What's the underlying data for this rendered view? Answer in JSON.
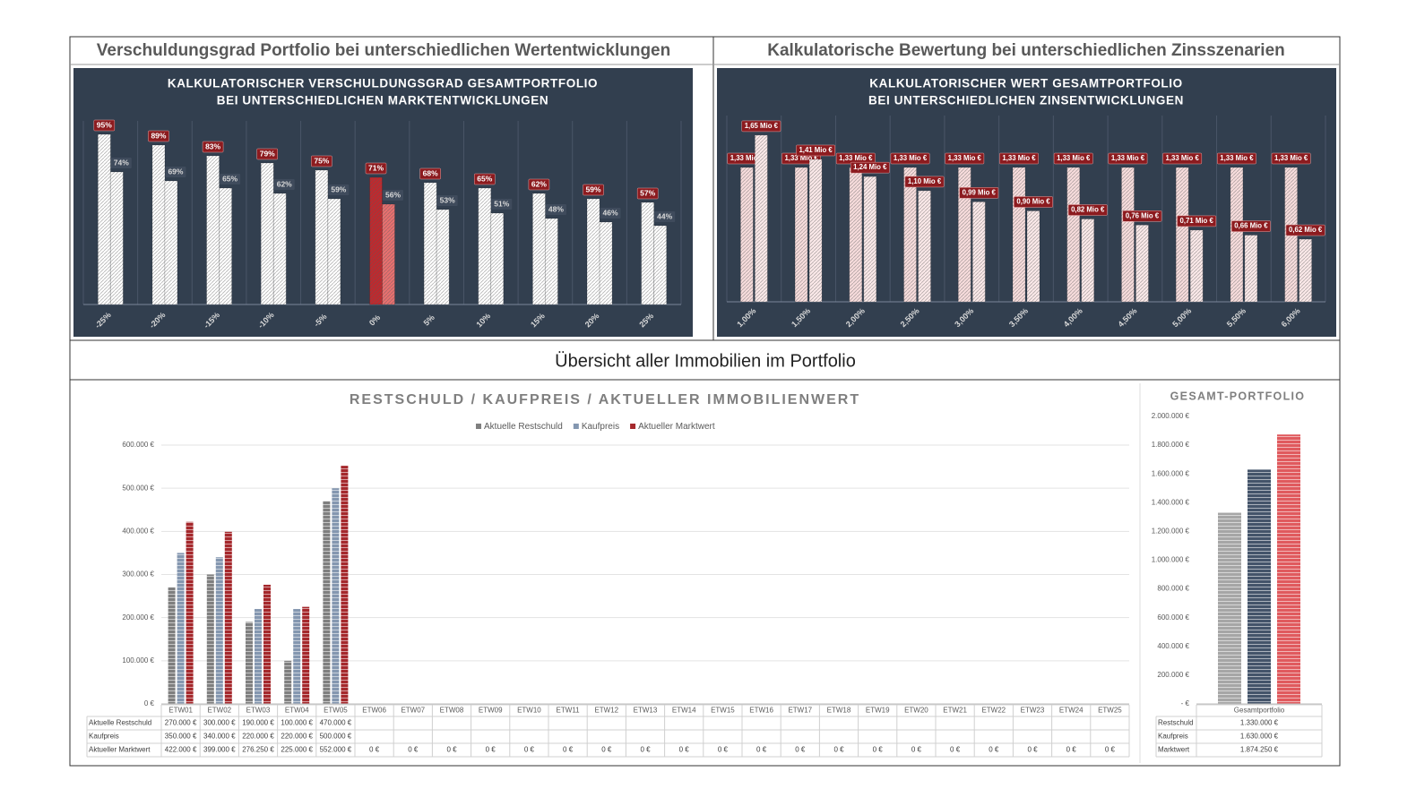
{
  "headers": {
    "left": "Verschuldungsgrad Portfolio bei unterschiedlichen Wertentwicklungen",
    "right": "Kalkulatorische Bewertung bei unterschiedlichen Zinsszenarien",
    "middle": "Übersicht aller Immobilien im Portfolio"
  },
  "chart_data": [
    {
      "type": "bar",
      "title": [
        "KALKULATORISCHER VERSCHULDUNGSGRAD GESAMTPORTFOLIO",
        "BEI UNTERSCHIEDLICHEN MARKTENTWICKLUNGEN"
      ],
      "categories": [
        "-25%",
        "-20%",
        "-15%",
        "-10%",
        "-5%",
        "0%",
        "5%",
        "10%",
        "15%",
        "20%",
        "25%"
      ],
      "ylim": [
        0,
        100
      ],
      "series": [
        {
          "color": "#ffffff",
          "colors": [
            "#ffffff",
            "#ffffff",
            "#ffffff",
            "#ffffff",
            "#ffffff",
            "#c0282d",
            "#ffffff",
            "#ffffff",
            "#ffffff",
            "#ffffff",
            "#ffffff"
          ],
          "values": [
            95,
            89,
            83,
            79,
            75,
            71,
            68,
            65,
            62,
            59,
            57
          ],
          "value_labels": [
            "95%",
            "89%",
            "83%",
            "79%",
            "75%",
            "71%",
            "68%",
            "65%",
            "62%",
            "59%",
            "57%"
          ]
        },
        {
          "color": "#ffffff",
          "colors": [
            "#ffffff",
            "#ffffff",
            "#ffffff",
            "#ffffff",
            "#ffffff",
            "#e8706f",
            "#ffffff",
            "#ffffff",
            "#ffffff",
            "#ffffff",
            "#ffffff"
          ],
          "values": [
            74,
            69,
            65,
            62,
            59,
            56,
            53,
            51,
            48,
            46,
            44
          ],
          "value_labels": [
            "74%",
            "69%",
            "65%",
            "62%",
            "59%",
            "56%",
            "53%",
            "51%",
            "48%",
            "46%",
            "44%"
          ]
        }
      ]
    },
    {
      "type": "bar",
      "title": [
        "KALKULATORISCHER WERT GESAMTPORTFOLIO",
        "BEI UNTERSCHIEDLICHEN ZINSENTWICKLUNGEN"
      ],
      "categories": [
        "1,00%",
        "1,50%",
        "2,00%",
        "2,50%",
        "3,00%",
        "3,50%",
        "4,00%",
        "4,50%",
        "5,00%",
        "5,50%",
        "6,00%"
      ],
      "ylim": [
        0,
        1.8
      ],
      "series": [
        {
          "color": "#f7dcdc",
          "values": [
            1.33,
            1.33,
            1.33,
            1.33,
            1.33,
            1.33,
            1.33,
            1.33,
            1.33,
            1.33,
            1.33
          ],
          "value_labels": [
            "1,33 Mio €",
            "1,33 Mio €",
            "1,33 Mio €",
            "1,33 Mio €",
            "1,33 Mio €",
            "1,33 Mio €",
            "1,33 Mio €",
            "1,33 Mio €",
            "1,33 Mio €",
            "1,33 Mio €",
            "1,33 Mio €"
          ]
        },
        {
          "color": "#fbe9e9",
          "values": [
            1.65,
            1.41,
            1.24,
            1.1,
            0.99,
            0.9,
            0.82,
            0.76,
            0.71,
            0.66,
            0.62
          ],
          "value_labels": [
            "1,65 Mio €",
            "1,41 Mio €",
            "1,24 Mio €",
            "1,10 Mio €",
            "0,99 Mio €",
            "0,90 Mio €",
            "0,82 Mio €",
            "0,76 Mio €",
            "0,71 Mio €",
            "0,66 Mio €",
            "0,62 Mio €"
          ]
        }
      ]
    },
    {
      "type": "bar",
      "title": "RESTSCHULD / KAUFPREIS / AKTUELLER IMMOBILIENWERT",
      "legend": "top",
      "grid": true,
      "categories": [
        "ETW01",
        "ETW02",
        "ETW03",
        "ETW04",
        "ETW05",
        "ETW06",
        "ETW07",
        "ETW08",
        "ETW09",
        "ETW10",
        "ETW11",
        "ETW12",
        "ETW13",
        "ETW14",
        "ETW15",
        "ETW16",
        "ETW17",
        "ETW18",
        "ETW19",
        "ETW20",
        "ETW21",
        "ETW22",
        "ETW23",
        "ETW24",
        "ETW25"
      ],
      "ylim": [
        0,
        600000
      ],
      "yticks": [
        {
          "value": 0,
          "label": "0 €"
        },
        {
          "value": 100000,
          "label": "100.000 €"
        },
        {
          "value": 200000,
          "label": "200.000 €"
        },
        {
          "value": 300000,
          "label": "300.000 €"
        },
        {
          "value": 400000,
          "label": "400.000 €"
        },
        {
          "value": 500000,
          "label": "500.000 €"
        },
        {
          "value": 600000,
          "label": "600.000 €"
        }
      ],
      "series": [
        {
          "name": "Aktuelle Restschuld",
          "color": "#7f7f7f",
          "values": [
            270000,
            300000,
            190000,
            100000,
            470000,
            null,
            null,
            null,
            null,
            null,
            null,
            null,
            null,
            null,
            null,
            null,
            null,
            null,
            null,
            null,
            null,
            null,
            null,
            null,
            null
          ],
          "value_labels": [
            "270.000 €",
            "300.000 €",
            "190.000 €",
            "100.000 €",
            "470.000 €",
            null,
            null,
            null,
            null,
            null,
            null,
            null,
            null,
            null,
            null,
            null,
            null,
            null,
            null,
            null,
            null,
            null,
            null,
            null,
            null
          ]
        },
        {
          "name": "Kaufpreis",
          "color": "#8497b0",
          "values": [
            350000,
            340000,
            220000,
            220000,
            500000,
            null,
            null,
            null,
            null,
            null,
            null,
            null,
            null,
            null,
            null,
            null,
            null,
            null,
            null,
            null,
            null,
            null,
            null,
            null,
            null
          ],
          "value_labels": [
            "350.000 €",
            "340.000 €",
            "220.000 €",
            "220.000 €",
            "500.000 €",
            null,
            null,
            null,
            null,
            null,
            null,
            null,
            null,
            null,
            null,
            null,
            null,
            null,
            null,
            null,
            null,
            null,
            null,
            null,
            null
          ]
        },
        {
          "name": "Aktueller Marktwert",
          "color": "#a5282c",
          "values": [
            422000,
            399000,
            276250,
            225000,
            552000,
            0,
            0,
            0,
            0,
            0,
            0,
            0,
            0,
            0,
            0,
            0,
            0,
            0,
            0,
            0,
            0,
            0,
            0,
            0,
            0
          ],
          "value_labels": [
            "422.000 €",
            "399.000 €",
            "276.250 €",
            "225.000 €",
            "552.000 €",
            "0 €",
            "0 €",
            "0 €",
            "0 €",
            "0 €",
            "0 €",
            "0 €",
            "0 €",
            "0 €",
            "0 €",
            "0 €",
            "0 €",
            "0 €",
            "0 €",
            "0 €",
            "0 €",
            "0 €",
            "0 €",
            "0 €",
            "0 €"
          ]
        }
      ]
    },
    {
      "type": "bar",
      "title": "GESAMT-PORTFOLIO",
      "grid": false,
      "categories": [
        "Gesamtportfolio"
      ],
      "ylim": [
        0,
        2000000
      ],
      "yticks": [
        {
          "value": 0,
          "label": "- €"
        },
        {
          "value": 200000,
          "label": "200.000 €"
        },
        {
          "value": 400000,
          "label": "400.000 €"
        },
        {
          "value": 600000,
          "label": "600.000 €"
        },
        {
          "value": 800000,
          "label": "800.000 €"
        },
        {
          "value": 1000000,
          "label": "1.000.000 €"
        },
        {
          "value": 1200000,
          "label": "1.200.000 €"
        },
        {
          "value": 1400000,
          "label": "1.400.000 €"
        },
        {
          "value": 1600000,
          "label": "1.600.000 €"
        },
        {
          "value": 1800000,
          "label": "1.800.000 €"
        },
        {
          "value": 2000000,
          "label": "2.000.000 €"
        }
      ],
      "series": [
        {
          "name": "Restschuld",
          "color": "#a6a6a6",
          "values": [
            1330000
          ],
          "value_labels": [
            "1.330.000 €"
          ]
        },
        {
          "name": "Kaufpreis",
          "color": "#44546a",
          "values": [
            1630000
          ],
          "value_labels": [
            "1.630.000 €"
          ]
        },
        {
          "name": "Marktwert",
          "color": "#e05a5e",
          "values": [
            1874250
          ],
          "value_labels": [
            "1.874.250 €"
          ]
        }
      ]
    }
  ]
}
